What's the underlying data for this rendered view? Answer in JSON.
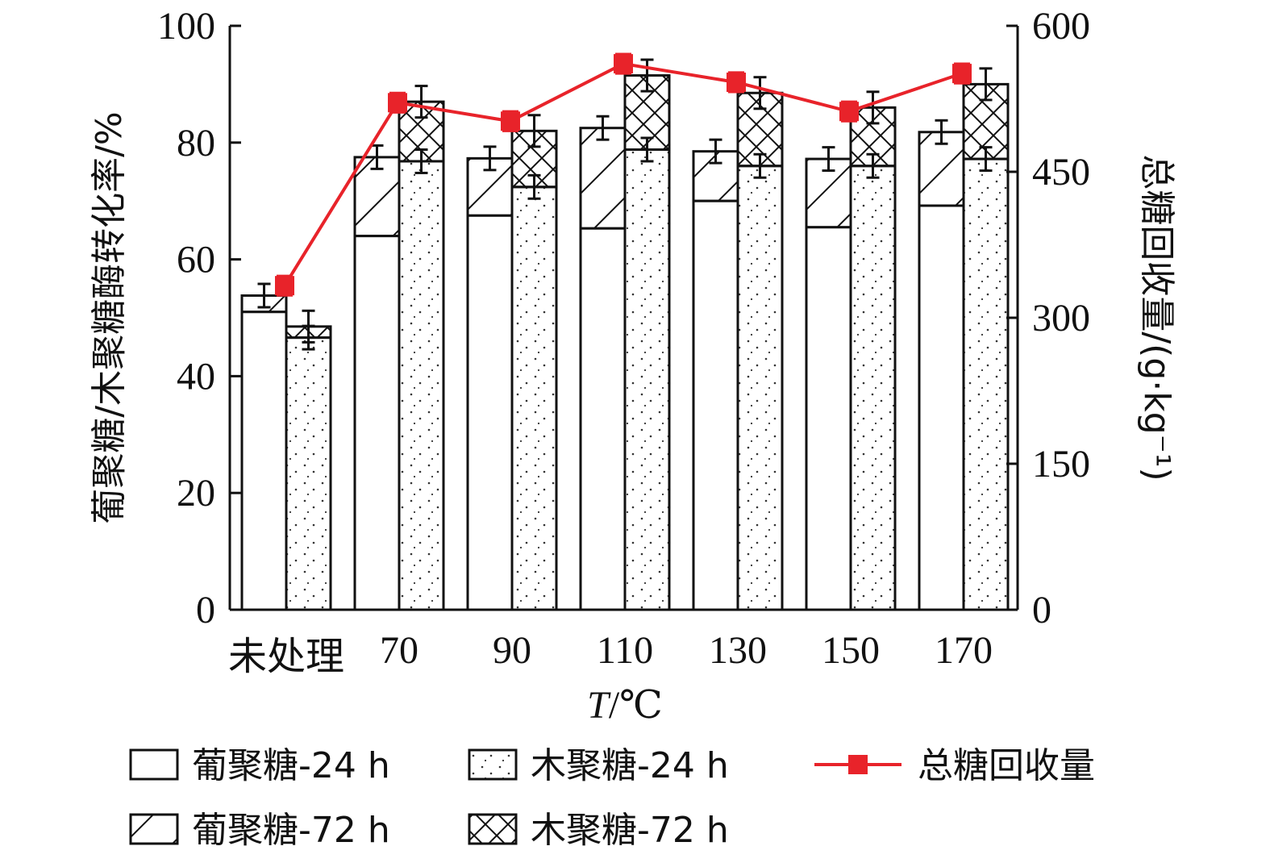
{
  "chart_data": {
    "type": "bar",
    "categories": [
      "未处理",
      "70",
      "90",
      "110",
      "130",
      "150",
      "170"
    ],
    "xlabel_italic": "T",
    "xlabel_rest": "/℃",
    "ylabel": "葡聚糖/木聚糖酶转化率/%",
    "y2label": "总糖回收量/(g·kg⁻¹)",
    "ylim": [
      0,
      100
    ],
    "y2lim": [
      0,
      600
    ],
    "yticks": [
      0,
      20,
      40,
      60,
      80,
      100
    ],
    "y2ticks": [
      0,
      150,
      300,
      450,
      600
    ],
    "series": [
      {
        "name": "葡聚糖-24 h",
        "values": [
          51.0,
          64.0,
          67.5,
          65.3,
          70.0,
          65.5,
          69.2
        ],
        "axis": "left"
      },
      {
        "name": "葡聚糖-72 h",
        "values": [
          53.8,
          77.5,
          77.3,
          82.5,
          78.5,
          77.2,
          81.8
        ],
        "axis": "left",
        "error": 2.0
      },
      {
        "name": "木聚糖-24 h",
        "values": [
          46.6,
          76.8,
          72.4,
          78.8,
          76.0,
          76.0,
          77.2
        ],
        "axis": "left",
        "error": 2.0
      },
      {
        "name": "木聚糖-72 h",
        "values": [
          48.5,
          87.0,
          82.0,
          91.5,
          88.5,
          86.0,
          90.0
        ],
        "axis": "left",
        "error": 2.7
      },
      {
        "name": "总糖回收量",
        "values": [
          333,
          521,
          502,
          561,
          542,
          512,
          551
        ],
        "axis": "right",
        "error": 10,
        "color": "#e8232a"
      }
    ],
    "legend_position": "bottom",
    "grid": false
  }
}
